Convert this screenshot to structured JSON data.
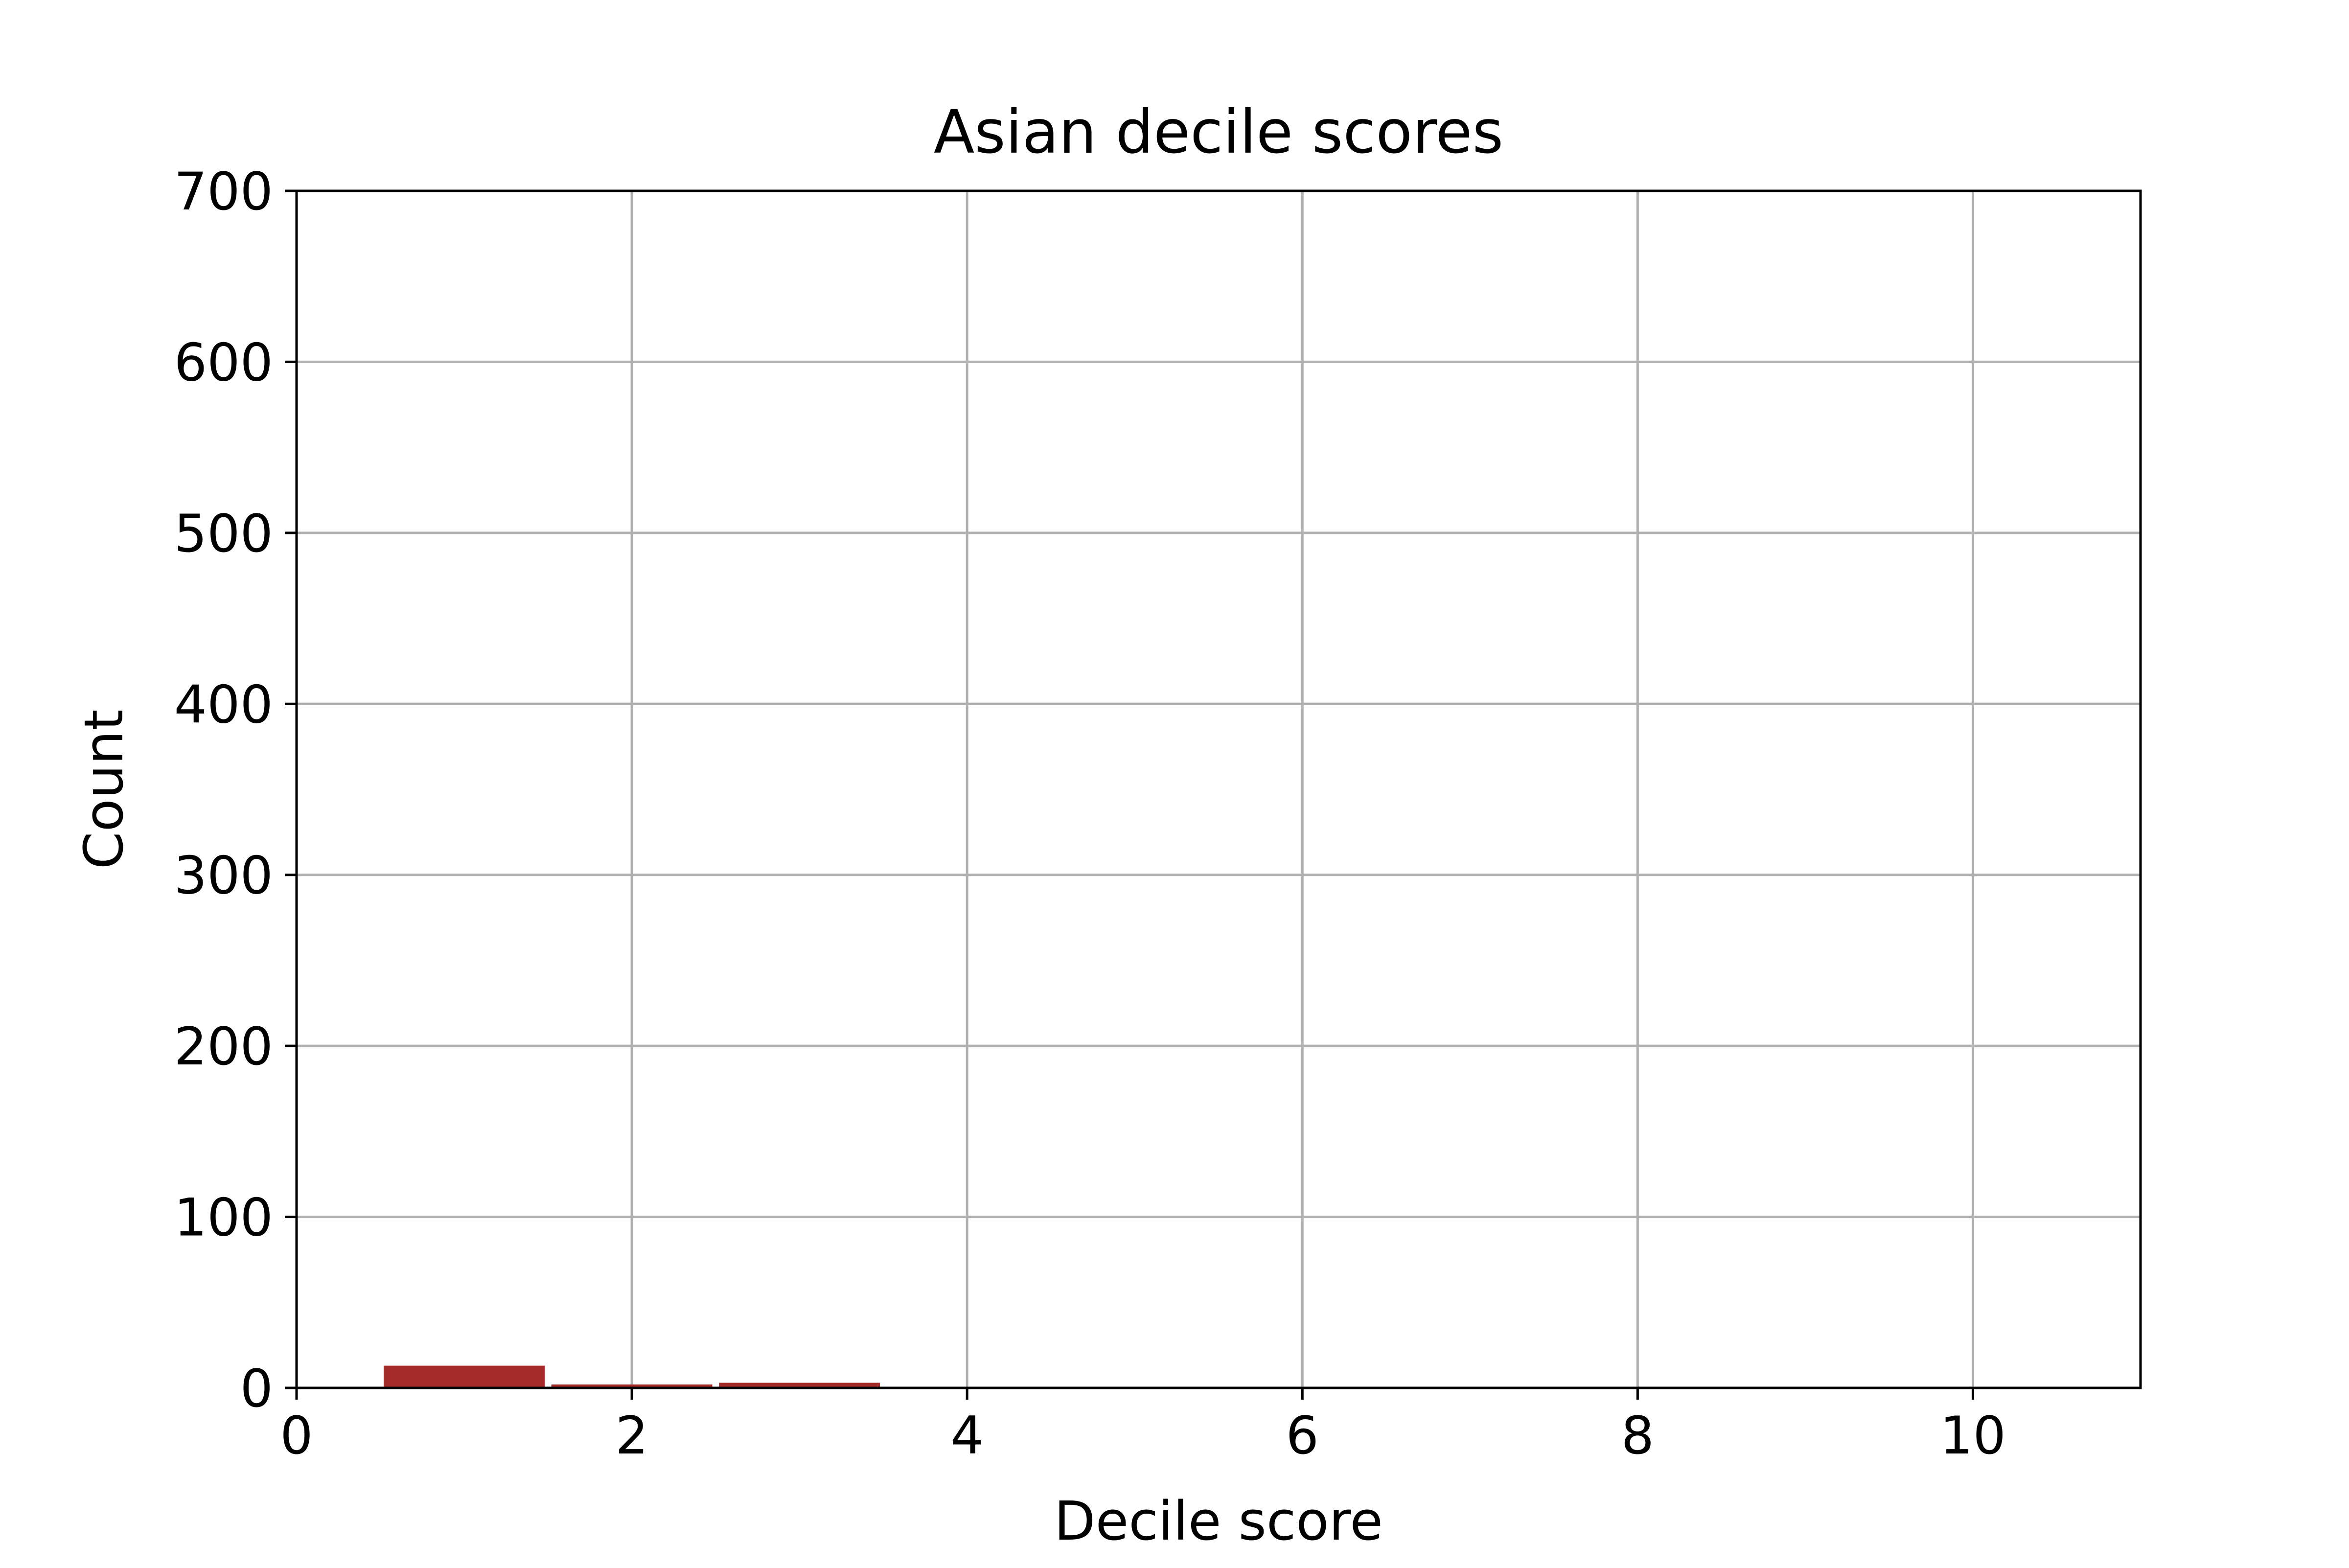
{
  "chart_data": {
    "type": "bar",
    "title": "Asian decile scores",
    "xlabel": "Decile score",
    "ylabel": "Count",
    "x": [
      1,
      2,
      3,
      4,
      5,
      6,
      7,
      8,
      9,
      10
    ],
    "values": [
      13,
      2,
      3,
      0,
      0,
      0,
      0,
      0,
      0,
      0
    ],
    "bar_width": 0.96,
    "xlim": [
      0,
      11
    ],
    "ylim": [
      0,
      700
    ],
    "xticks": [
      0,
      2,
      4,
      6,
      8,
      10
    ],
    "yticks": [
      0,
      100,
      200,
      300,
      400,
      500,
      600,
      700
    ],
    "xtick_labels": [
      "0",
      "2",
      "4",
      "6",
      "8",
      "10"
    ],
    "ytick_labels": [
      "0",
      "100",
      "200",
      "300",
      "400",
      "500",
      "600",
      "700"
    ],
    "grid": true,
    "legend": "none",
    "colors": {
      "bar": "#a52a2a",
      "grid": "#b0b0b0",
      "axis": "#000000"
    }
  }
}
